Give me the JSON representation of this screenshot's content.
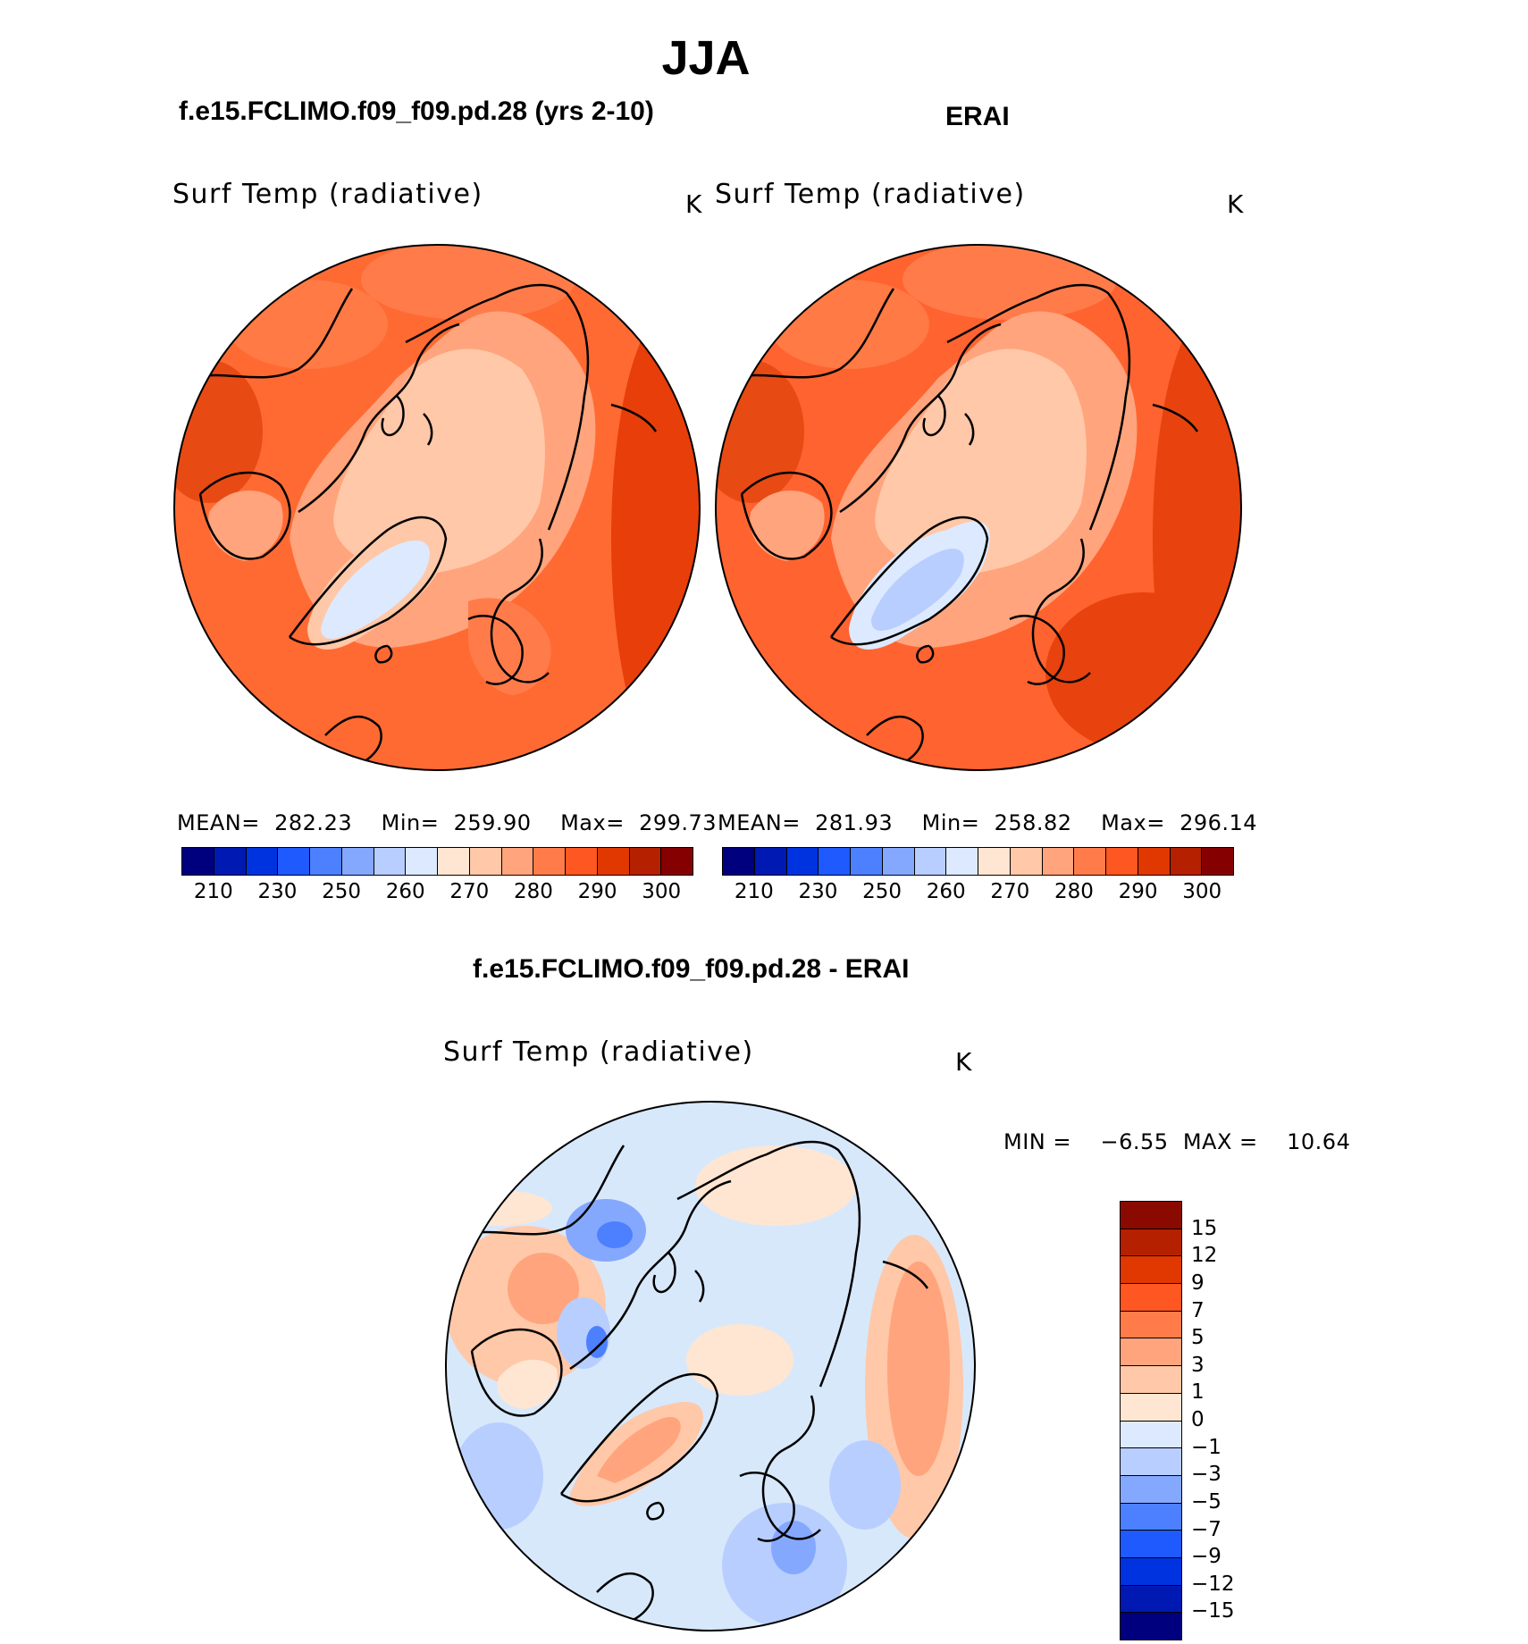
{
  "season": "JJA",
  "panels": [
    {
      "case_title": "f.e15.FCLIMO.f09_f09.pd.28 (yrs 2-10)",
      "variable": "Surf Temp (radiative)",
      "units": "K",
      "stats": {
        "mean_label": "MEAN=",
        "mean": "282.23",
        "min_label": "Min=",
        "min": "259.90",
        "max_label": "Max=",
        "max": "299.73"
      }
    },
    {
      "case_title": "ERAI",
      "variable": "Surf Temp (radiative)",
      "units": "K",
      "stats": {
        "mean_label": "MEAN=",
        "mean": "281.93",
        "min_label": "Min=",
        "min": "258.82",
        "max_label": "Max=",
        "max": "296.14"
      }
    }
  ],
  "diff_panel": {
    "case_title": "f.e15.FCLIMO.f09_f09.pd.28 - ERAI",
    "variable": "Surf Temp (radiative)",
    "units": "K",
    "minmax": {
      "min_label": "MIN =",
      "min": "−6.55",
      "max_label": "MAX =",
      "max": "10.64"
    }
  },
  "abs_colorbar": {
    "labels": [
      "210",
      "230",
      "250",
      "260",
      "270",
      "280",
      "290",
      "300"
    ],
    "colors": [
      "#00007f",
      "#0019b2",
      "#0033e0",
      "#1f5aff",
      "#4d80ff",
      "#85a8ff",
      "#b8ceff",
      "#dce9ff",
      "#ffe6d2",
      "#ffc8a8",
      "#ffa47c",
      "#ff7c4a",
      "#ff5722",
      "#e03800",
      "#b52000",
      "#850000"
    ]
  },
  "diff_colorbar": {
    "labels": [
      "15",
      "12",
      "9",
      "7",
      "5",
      "3",
      "1",
      "0",
      "−1",
      "−3",
      "−5",
      "−7",
      "−9",
      "−12",
      "−15"
    ],
    "colors": [
      "#8b0a00",
      "#b52000",
      "#e03800",
      "#ff5722",
      "#ff7c4a",
      "#ffa47c",
      "#ffc8a8",
      "#ffe6d2",
      "#dce9ff",
      "#b8ceff",
      "#85a8ff",
      "#4d80ff",
      "#1f5aff",
      "#0033e0",
      "#0019b2",
      "#00007f"
    ]
  },
  "colors": {
    "map_base": "#ff6a33",
    "diff_base": "#d8e8fb"
  }
}
